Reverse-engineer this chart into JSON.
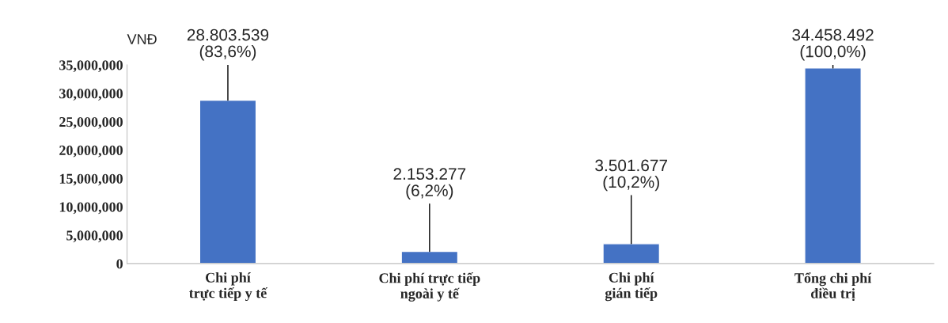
{
  "chart_data": {
    "type": "bar",
    "ylabel": "VNĐ",
    "categories": [
      "Chi phí\ntrực tiếp y tế",
      "Chi phí trực tiếp\nngoài y tế",
      "Chi phí\ngián tiếp",
      "Tổng chi phí\nđiều trị"
    ],
    "values": [
      28803539,
      2153277,
      3501677,
      34458492
    ],
    "color": "#4472c4",
    "errors": [
      [
        28803539,
        35000000
      ],
      [
        2153277,
        10500000
      ],
      [
        3501677,
        12000000
      ],
      [
        34458492,
        35000000
      ]
    ],
    "value_labels": [
      "28.803.539\n(83,6%)",
      "2.153.277\n(6,2%)",
      "3.501.677\n(10,2%)",
      "34.458.492\n(100,0%)"
    ],
    "ylim": [
      0,
      35000000
    ],
    "yticks": [
      {
        "value": 0,
        "label": "0"
      },
      {
        "value": 5000000,
        "label": "5,000,000"
      },
      {
        "value": 10000000,
        "label": "10,000,000"
      },
      {
        "value": 15000000,
        "label": "15,000,000"
      },
      {
        "value": 20000000,
        "label": "20,000,000"
      },
      {
        "value": 25000000,
        "label": "25,000,000"
      },
      {
        "value": 30000000,
        "label": "30,000,000"
      },
      {
        "value": 35000000,
        "label": "35,000,000"
      }
    ],
    "grid": false,
    "legend": false
  }
}
